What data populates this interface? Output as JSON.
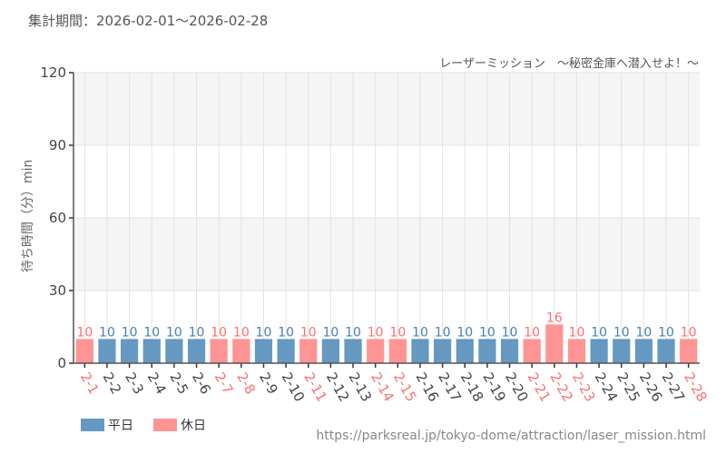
{
  "header": {
    "period_label": "集計期間：2026-02-01～2026-02-28",
    "chart_subtitle": "レーザーミッション　～秘密金庫へ潜入せよ！～"
  },
  "footer": {
    "source_url": "https://parksreal.jp/tokyo-dome/attraction/laser_mission.html"
  },
  "legend": {
    "items": [
      {
        "label": "平日",
        "color": "#6699c2"
      },
      {
        "label": "休日",
        "color": "#ff9494"
      }
    ]
  },
  "colors": {
    "weekday_bar": "#6699c2",
    "holiday_bar": "#ff9494",
    "weekday_text": "#4a7fb5",
    "holiday_text": "#ff6f6f",
    "band": "#f5f5f5",
    "grid": "#e2e2e2",
    "axis": "#555555"
  },
  "chart_data": {
    "type": "bar",
    "title": "レーザーミッション　～秘密金庫へ潜入せよ！～",
    "subtitle": "集計期間：2026-02-01～2026-02-28",
    "xlabel": "",
    "ylabel": "待ち時間（分）min",
    "ylim": [
      0,
      120
    ],
    "yticks": [
      0,
      30,
      60,
      90,
      120
    ],
    "grid": true,
    "legend_position": "bottom-left",
    "categories": [
      "2-1",
      "2-2",
      "2-3",
      "2-4",
      "2-5",
      "2-6",
      "2-7",
      "2-8",
      "2-9",
      "2-10",
      "2-11",
      "2-12",
      "2-13",
      "2-14",
      "2-15",
      "2-16",
      "2-17",
      "2-18",
      "2-19",
      "2-20",
      "2-21",
      "2-22",
      "2-23",
      "2-24",
      "2-25",
      "2-26",
      "2-27",
      "2-28"
    ],
    "values": [
      10,
      10,
      10,
      10,
      10,
      10,
      10,
      10,
      10,
      10,
      10,
      10,
      10,
      10,
      10,
      10,
      10,
      10,
      10,
      10,
      10,
      16,
      10,
      10,
      10,
      10,
      10,
      10
    ],
    "day_type": [
      "休日",
      "平日",
      "平日",
      "平日",
      "平日",
      "平日",
      "休日",
      "休日",
      "平日",
      "平日",
      "休日",
      "平日",
      "平日",
      "休日",
      "休日",
      "平日",
      "平日",
      "平日",
      "平日",
      "平日",
      "休日",
      "休日",
      "休日",
      "平日",
      "平日",
      "平日",
      "平日",
      "休日"
    ],
    "series": [
      {
        "name": "平日",
        "values": [
          null,
          10,
          10,
          10,
          10,
          10,
          null,
          null,
          10,
          10,
          null,
          10,
          10,
          null,
          null,
          10,
          10,
          10,
          10,
          10,
          null,
          null,
          null,
          10,
          10,
          10,
          10,
          null
        ]
      },
      {
        "name": "休日",
        "values": [
          10,
          null,
          null,
          null,
          null,
          null,
          10,
          10,
          null,
          null,
          10,
          null,
          null,
          10,
          10,
          null,
          null,
          null,
          null,
          null,
          10,
          16,
          10,
          null,
          null,
          null,
          null,
          10
        ]
      }
    ]
  }
}
